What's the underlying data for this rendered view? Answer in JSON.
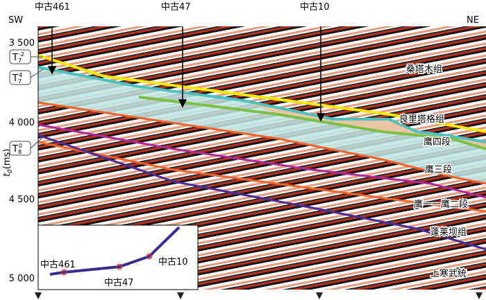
{
  "header": {
    "left": "SW",
    "right": "NE",
    "wells": [
      "中古461",
      "中古47",
      "中古10"
    ]
  },
  "axis": {
    "label": {
      "base": "t",
      "sub": "0",
      "rest": "(ms)"
    },
    "ticks": [
      "3 500",
      "4 000",
      "4 500",
      "5 000"
    ]
  },
  "horizons": [
    {
      "base": "T",
      "sub": "7",
      "sup": "-2"
    },
    {
      "base": "T",
      "sub": "7",
      "sup": "4"
    },
    {
      "base": "T",
      "sub": "8",
      "sup": "0"
    }
  ],
  "formations": [
    "桑塔木组",
    "良里塔格组",
    "鹰四段",
    "鹰三段",
    "鹰一一鹰二段",
    "蓬莱坝组",
    "上寒武统"
  ],
  "inset": {
    "labels": [
      "中古461",
      "中古47",
      "中古10"
    ]
  }
}
